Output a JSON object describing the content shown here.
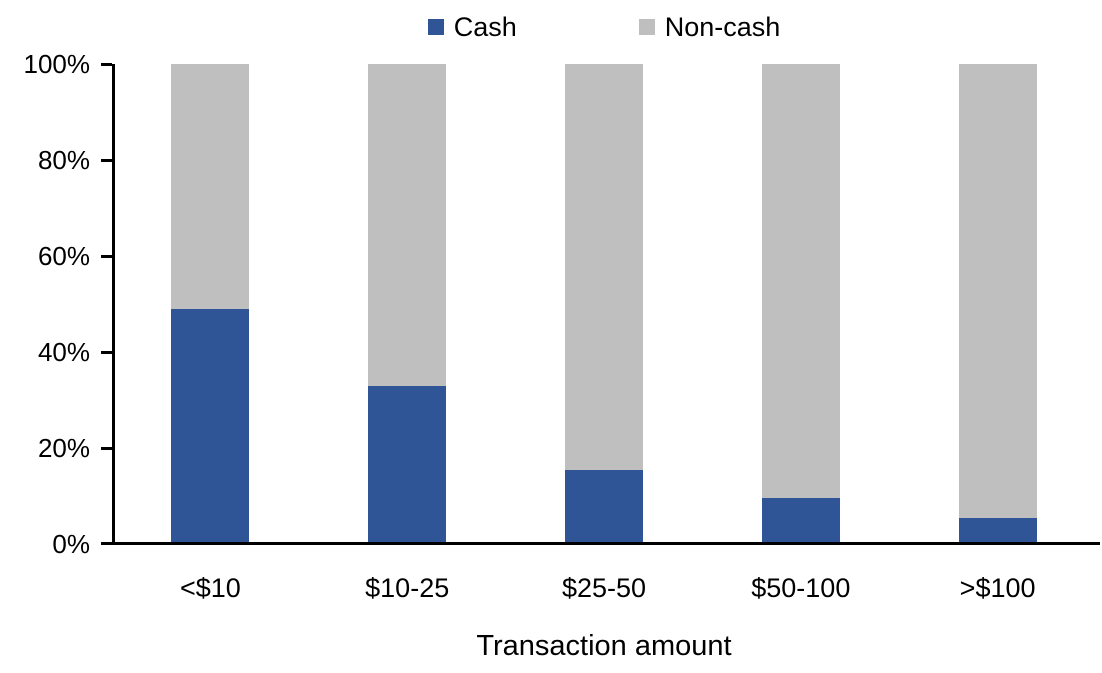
{
  "chart_data": {
    "type": "bar",
    "stacked": true,
    "title": "",
    "xlabel": "Transaction amount",
    "ylabel": "",
    "categories": [
      "<$10",
      "$10-25",
      "$25-50",
      "$50-100",
      ">$100"
    ],
    "series": [
      {
        "name": "Cash",
        "color": "#2F5597",
        "values": [
          49,
          33,
          15.5,
          9.5,
          5.5
        ]
      },
      {
        "name": "Non-cash",
        "color": "#BFBFBF",
        "values": [
          51,
          67,
          84.5,
          90.5,
          94.5
        ]
      }
    ],
    "y_ticks": [
      "100%",
      "80%",
      "60%",
      "40%",
      "20%",
      "0%"
    ],
    "ylim": [
      0,
      100
    ],
    "grid": false,
    "legend_position": "top",
    "axis_color": "#000000",
    "background": "#FFFFFF"
  }
}
